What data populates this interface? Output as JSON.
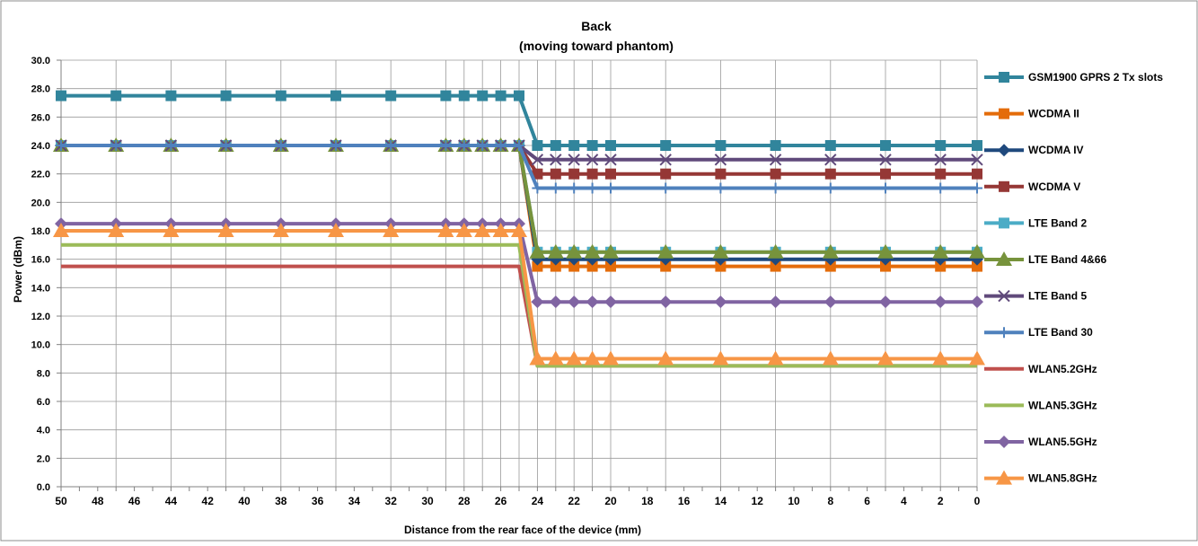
{
  "chart_data": {
    "type": "line",
    "title": "Back",
    "subtitle": "(moving toward phantom)",
    "xlabel": "Distance from the rear face of the device (mm)",
    "ylabel": "Power (dBm)",
    "ylim": [
      0,
      30
    ],
    "y_ticks": [
      "0.0",
      "2.0",
      "4.0",
      "6.0",
      "8.0",
      "10.0",
      "12.0",
      "14.0",
      "16.0",
      "18.0",
      "20.0",
      "22.0",
      "24.0",
      "26.0",
      "28.0",
      "30.0"
    ],
    "x_ticks": [
      "50",
      "48",
      "46",
      "44",
      "42",
      "40",
      "38",
      "36",
      "34",
      "32",
      "30",
      "28",
      "26",
      "24",
      "22",
      "20",
      "18",
      "16",
      "14",
      "12",
      "10",
      "8",
      "6",
      "4",
      "2",
      "0"
    ],
    "x_reversed": true,
    "grid": true,
    "legend_position": "right",
    "x": [
      50,
      47,
      44,
      41,
      38,
      35,
      32,
      29,
      28,
      27,
      26,
      25,
      24,
      23,
      22,
      21,
      20,
      17,
      14,
      11,
      8,
      5,
      2,
      0
    ],
    "series": [
      {
        "name": "GSM1900 GPRS 2 Tx slots",
        "color": "#31859C",
        "marker": "square",
        "values": [
          27.5,
          27.5,
          27.5,
          27.5,
          27.5,
          27.5,
          27.5,
          27.5,
          27.5,
          27.5,
          27.5,
          27.5,
          24,
          24,
          24,
          24,
          24,
          24,
          24,
          24,
          24,
          24,
          24,
          24
        ]
      },
      {
        "name": "WCDMA II",
        "color": "#E46C0A",
        "marker": "square",
        "values": [
          24,
          24,
          24,
          24,
          24,
          24,
          24,
          24,
          24,
          24,
          24,
          24,
          15.5,
          15.5,
          15.5,
          15.5,
          15.5,
          15.5,
          15.5,
          15.5,
          15.5,
          15.5,
          15.5,
          15.5
        ]
      },
      {
        "name": "WCDMA IV",
        "color": "#1F497D",
        "marker": "diamond",
        "values": [
          24,
          24,
          24,
          24,
          24,
          24,
          24,
          24,
          24,
          24,
          24,
          24,
          16,
          16,
          16,
          16,
          16,
          16,
          16,
          16,
          16,
          16,
          16,
          16
        ]
      },
      {
        "name": "WCDMA V",
        "color": "#953735",
        "marker": "square",
        "values": [
          24,
          24,
          24,
          24,
          24,
          24,
          24,
          24,
          24,
          24,
          24,
          24,
          22,
          22,
          22,
          22,
          22,
          22,
          22,
          22,
          22,
          22,
          22,
          22
        ]
      },
      {
        "name": "LTE Band 2",
        "color": "#4BACC6",
        "marker": "square",
        "values": [
          24,
          24,
          24,
          24,
          24,
          24,
          24,
          24,
          24,
          24,
          24,
          24,
          16.5,
          16.5,
          16.5,
          16.5,
          16.5,
          16.5,
          16.5,
          16.5,
          16.5,
          16.5,
          16.5,
          16.5
        ]
      },
      {
        "name": "LTE Band 4&66",
        "color": "#77933C",
        "marker": "triangle",
        "values": [
          24,
          24,
          24,
          24,
          24,
          24,
          24,
          24,
          24,
          24,
          24,
          24,
          16.5,
          16.5,
          16.5,
          16.5,
          16.5,
          16.5,
          16.5,
          16.5,
          16.5,
          16.5,
          16.5,
          16.5
        ]
      },
      {
        "name": "LTE Band 5",
        "color": "#604A7B",
        "marker": "x",
        "values": [
          24,
          24,
          24,
          24,
          24,
          24,
          24,
          24,
          24,
          24,
          24,
          24,
          23,
          23,
          23,
          23,
          23,
          23,
          23,
          23,
          23,
          23,
          23,
          23
        ]
      },
      {
        "name": "LTE Band 30",
        "color": "#4F81BD",
        "marker": "plus",
        "values": [
          24,
          24,
          24,
          24,
          24,
          24,
          24,
          24,
          24,
          24,
          24,
          24,
          21,
          21,
          21,
          21,
          21,
          21,
          21,
          21,
          21,
          21,
          21,
          21
        ]
      },
      {
        "name": "WLAN5.2GHz",
        "color": "#C0504D",
        "marker": "none",
        "values": [
          15.5,
          15.5,
          15.5,
          15.5,
          15.5,
          15.5,
          15.5,
          15.5,
          15.5,
          15.5,
          15.5,
          15.5,
          8.5,
          8.5,
          8.5,
          8.5,
          8.5,
          8.5,
          8.5,
          8.5,
          8.5,
          8.5,
          8.5,
          8.5
        ]
      },
      {
        "name": "WLAN5.3GHz",
        "color": "#9BBB59",
        "marker": "none",
        "values": [
          17,
          17,
          17,
          17,
          17,
          17,
          17,
          17,
          17,
          17,
          17,
          17,
          8.5,
          8.5,
          8.5,
          8.5,
          8.5,
          8.5,
          8.5,
          8.5,
          8.5,
          8.5,
          8.5,
          8.5
        ]
      },
      {
        "name": "WLAN5.5GHz",
        "color": "#8064A2",
        "marker": "diamond",
        "values": [
          18.5,
          18.5,
          18.5,
          18.5,
          18.5,
          18.5,
          18.5,
          18.5,
          18.5,
          18.5,
          18.5,
          18.5,
          13,
          13,
          13,
          13,
          13,
          13,
          13,
          13,
          13,
          13,
          13,
          13
        ]
      },
      {
        "name": "WLAN5.8GHz",
        "color": "#F79646",
        "marker": "triangle",
        "values": [
          18,
          18,
          18,
          18,
          18,
          18,
          18,
          18,
          18,
          18,
          18,
          18,
          9,
          9,
          9,
          9,
          9,
          9,
          9,
          9,
          9,
          9,
          9,
          9
        ]
      }
    ]
  }
}
